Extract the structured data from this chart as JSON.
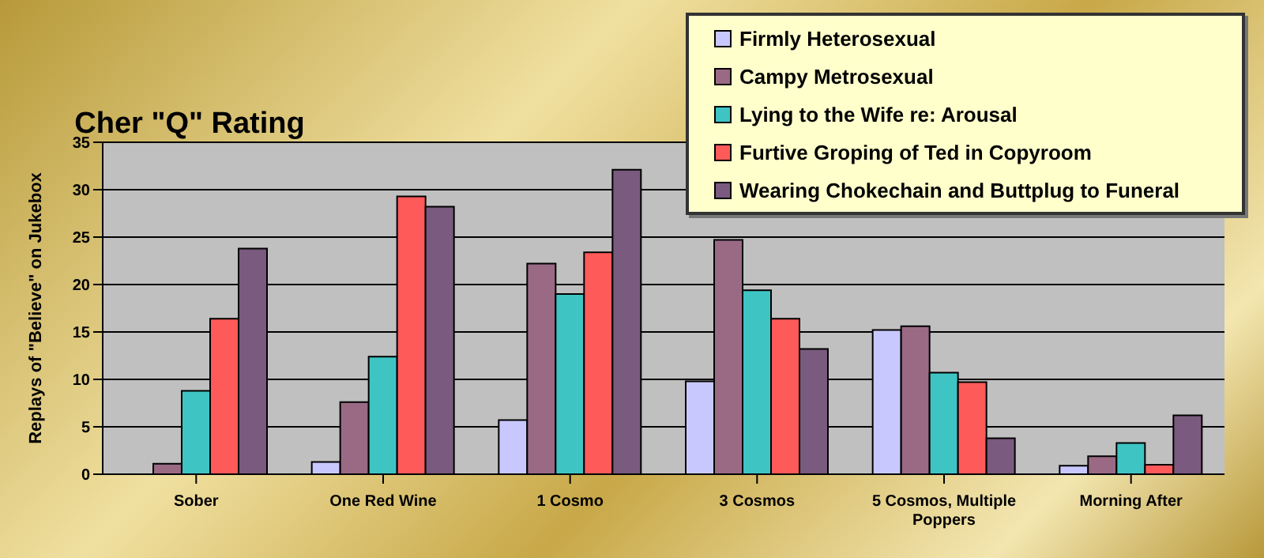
{
  "chart_data": {
    "type": "bar",
    "title": "Cher \"Q\" Rating",
    "ylabel": "Replays of \"Believe\" on Jukebox",
    "categories": [
      "Sober",
      "One Red Wine",
      "1 Cosmo",
      "3 Cosmos",
      "5 Cosmos, Multiple Poppers",
      "Morning After"
    ],
    "series": [
      {
        "name": "Firmly Heterosexual",
        "color": "#c8c8ff",
        "values": [
          0,
          1.3,
          5.7,
          9.8,
          15.2,
          0.9
        ]
      },
      {
        "name": "Campy Metrosexual",
        "color": "#9a6a85",
        "values": [
          1.1,
          7.6,
          22.2,
          24.7,
          15.6,
          1.9
        ]
      },
      {
        "name": "Lying to the Wife re: Arousal",
        "color": "#3fc4c4",
        "values": [
          8.8,
          12.4,
          19.0,
          19.4,
          10.7,
          3.3
        ]
      },
      {
        "name": "Furtive Groping of Ted in Copyroom",
        "color": "#ff5a5a",
        "values": [
          16.4,
          29.3,
          23.4,
          16.4,
          9.7,
          1.0
        ]
      },
      {
        "name": "Wearing Chokechain and Buttplug to Funeral",
        "color": "#7a5a7e",
        "values": [
          23.8,
          28.2,
          32.1,
          13.2,
          3.8,
          6.2
        ]
      }
    ],
    "ylim": [
      0,
      35
    ],
    "yticks": [
      0,
      5,
      10,
      15,
      20,
      25,
      30,
      35
    ],
    "grid": "y",
    "legend": "top right"
  }
}
